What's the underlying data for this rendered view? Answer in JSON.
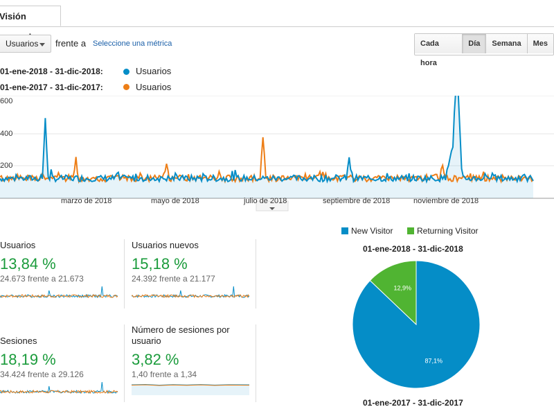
{
  "tabs": {
    "overview": "Visión general"
  },
  "metric_select": {
    "value": "Usuarios"
  },
  "compare_text": "frente a",
  "select_metric_link": "Seleccione una métrica",
  "time_buttons": [
    "Cada hora",
    "Día",
    "Semana",
    "Mes"
  ],
  "time_active": "Día",
  "colors": {
    "blue": "#058dc7",
    "orange": "#ed7e17",
    "green": "#50b432",
    "percent_green": "#1a9b3b"
  },
  "legend": [
    {
      "range": "01-ene-2018 - 31-dic-2018:",
      "series": "Usuarios"
    },
    {
      "range": "01-ene-2017 - 31-dic-2017:",
      "series": "Usuarios"
    }
  ],
  "main_chart": {
    "y_ticks": [
      "600",
      "400",
      "200"
    ],
    "x_labels": [
      "marzo de 2018",
      "mayo de 2018",
      "julio de 2018",
      "septiembre de 2018",
      "noviembre de 2018"
    ]
  },
  "metrics": [
    {
      "title": "Usuarios",
      "change": "13,84 %",
      "comparison": "24.673 frente a 21.673"
    },
    {
      "title": "Usuarios nuevos",
      "change": "15,18 %",
      "comparison": "24.392 frente a 21.177"
    },
    {
      "title": "Sesiones",
      "change": "18,19 %",
      "comparison": "34.424 frente a 29.126"
    },
    {
      "title": "Número de sesiones por usuario",
      "title_line1": "Número de sesiones por",
      "title_line2": "usuario",
      "change": "3,82 %",
      "comparison": "1,40 frente a 1,34"
    }
  ],
  "pie": {
    "legend": [
      "New Visitor",
      "Returning Visitor"
    ],
    "title_top": "01-ene-2018 - 31-dic-2018",
    "title_bottom": "01-ene-2017 - 31-dic-2017",
    "slices": [
      {
        "name": "New Visitor",
        "value": 87.1,
        "label": "87,1%"
      },
      {
        "name": "Returning Visitor",
        "value": 12.9,
        "label": "12,9%"
      }
    ]
  }
}
